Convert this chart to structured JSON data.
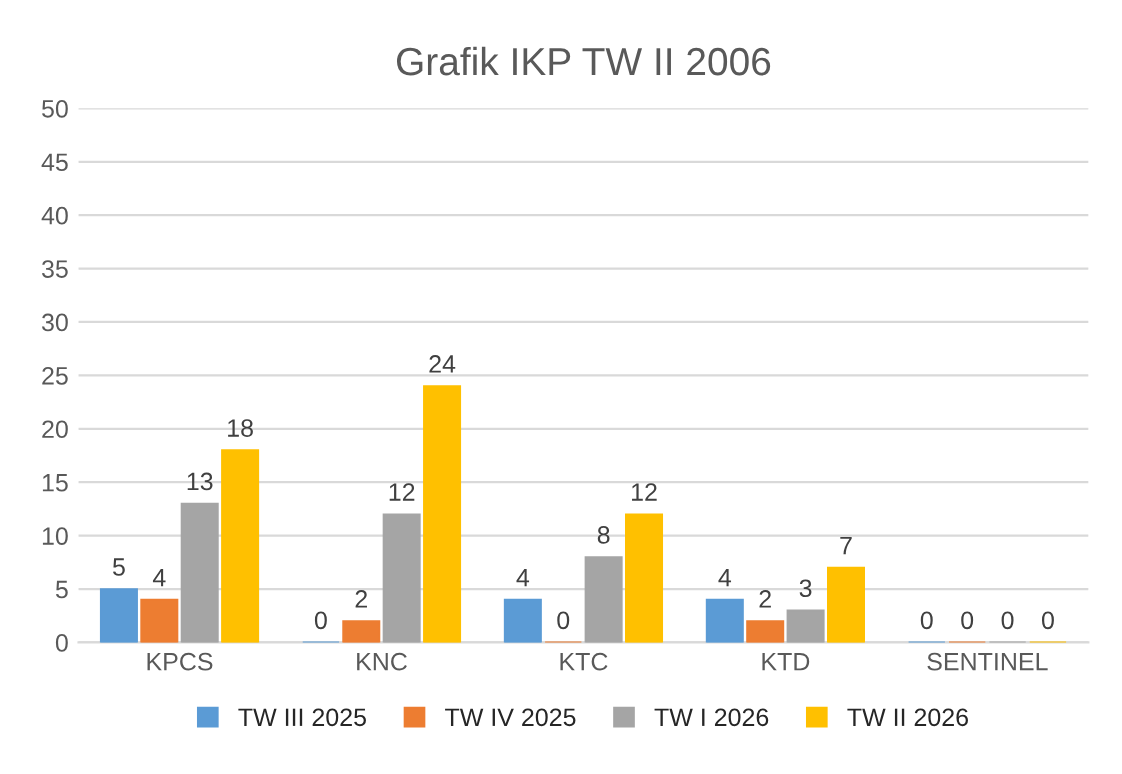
{
  "chart_data": {
    "type": "bar",
    "title": "Grafik IKP TW II 2006",
    "categories": [
      "KPCS",
      "KNC",
      "KTC",
      "KTD",
      "SENTINEL"
    ],
    "series": [
      {
        "name": "TW III 2025",
        "color": "#5b9bd5",
        "values": [
          5,
          0,
          4,
          4,
          0
        ]
      },
      {
        "name": "TW IV 2025",
        "color": "#ed7d31",
        "values": [
          4,
          2,
          0,
          2,
          0
        ]
      },
      {
        "name": "TW I 2026",
        "color": "#a5a5a5",
        "values": [
          13,
          12,
          8,
          3,
          0
        ]
      },
      {
        "name": "TW II 2026",
        "color": "#ffc000",
        "values": [
          18,
          24,
          12,
          7,
          0
        ]
      }
    ],
    "ylim": [
      0,
      50
    ],
    "yticks": [
      0,
      5,
      10,
      15,
      20,
      25,
      30,
      35,
      40,
      45,
      50
    ],
    "grid": "y",
    "legend": "bottom",
    "data_labels": true
  }
}
